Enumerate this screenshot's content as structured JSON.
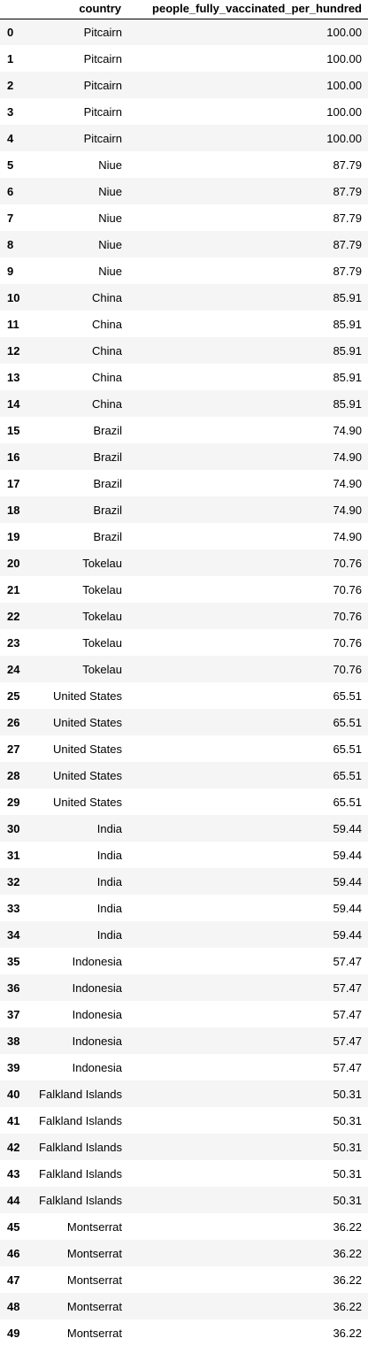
{
  "table": {
    "columns": [
      "country",
      "people_fully_vaccinated_per_hundred"
    ],
    "rows": [
      {
        "index": "0",
        "country": "Pitcairn",
        "value": "100.00"
      },
      {
        "index": "1",
        "country": "Pitcairn",
        "value": "100.00"
      },
      {
        "index": "2",
        "country": "Pitcairn",
        "value": "100.00"
      },
      {
        "index": "3",
        "country": "Pitcairn",
        "value": "100.00"
      },
      {
        "index": "4",
        "country": "Pitcairn",
        "value": "100.00"
      },
      {
        "index": "5",
        "country": "Niue",
        "value": "87.79"
      },
      {
        "index": "6",
        "country": "Niue",
        "value": "87.79"
      },
      {
        "index": "7",
        "country": "Niue",
        "value": "87.79"
      },
      {
        "index": "8",
        "country": "Niue",
        "value": "87.79"
      },
      {
        "index": "9",
        "country": "Niue",
        "value": "87.79"
      },
      {
        "index": "10",
        "country": "China",
        "value": "85.91"
      },
      {
        "index": "11",
        "country": "China",
        "value": "85.91"
      },
      {
        "index": "12",
        "country": "China",
        "value": "85.91"
      },
      {
        "index": "13",
        "country": "China",
        "value": "85.91"
      },
      {
        "index": "14",
        "country": "China",
        "value": "85.91"
      },
      {
        "index": "15",
        "country": "Brazil",
        "value": "74.90"
      },
      {
        "index": "16",
        "country": "Brazil",
        "value": "74.90"
      },
      {
        "index": "17",
        "country": "Brazil",
        "value": "74.90"
      },
      {
        "index": "18",
        "country": "Brazil",
        "value": "74.90"
      },
      {
        "index": "19",
        "country": "Brazil",
        "value": "74.90"
      },
      {
        "index": "20",
        "country": "Tokelau",
        "value": "70.76"
      },
      {
        "index": "21",
        "country": "Tokelau",
        "value": "70.76"
      },
      {
        "index": "22",
        "country": "Tokelau",
        "value": "70.76"
      },
      {
        "index": "23",
        "country": "Tokelau",
        "value": "70.76"
      },
      {
        "index": "24",
        "country": "Tokelau",
        "value": "70.76"
      },
      {
        "index": "25",
        "country": "United States",
        "value": "65.51"
      },
      {
        "index": "26",
        "country": "United States",
        "value": "65.51"
      },
      {
        "index": "27",
        "country": "United States",
        "value": "65.51"
      },
      {
        "index": "28",
        "country": "United States",
        "value": "65.51"
      },
      {
        "index": "29",
        "country": "United States",
        "value": "65.51"
      },
      {
        "index": "30",
        "country": "India",
        "value": "59.44"
      },
      {
        "index": "31",
        "country": "India",
        "value": "59.44"
      },
      {
        "index": "32",
        "country": "India",
        "value": "59.44"
      },
      {
        "index": "33",
        "country": "India",
        "value": "59.44"
      },
      {
        "index": "34",
        "country": "India",
        "value": "59.44"
      },
      {
        "index": "35",
        "country": "Indonesia",
        "value": "57.47"
      },
      {
        "index": "36",
        "country": "Indonesia",
        "value": "57.47"
      },
      {
        "index": "37",
        "country": "Indonesia",
        "value": "57.47"
      },
      {
        "index": "38",
        "country": "Indonesia",
        "value": "57.47"
      },
      {
        "index": "39",
        "country": "Indonesia",
        "value": "57.47"
      },
      {
        "index": "40",
        "country": "Falkland Islands",
        "value": "50.31"
      },
      {
        "index": "41",
        "country": "Falkland Islands",
        "value": "50.31"
      },
      {
        "index": "42",
        "country": "Falkland Islands",
        "value": "50.31"
      },
      {
        "index": "43",
        "country": "Falkland Islands",
        "value": "50.31"
      },
      {
        "index": "44",
        "country": "Falkland Islands",
        "value": "50.31"
      },
      {
        "index": "45",
        "country": "Montserrat",
        "value": "36.22"
      },
      {
        "index": "46",
        "country": "Montserrat",
        "value": "36.22"
      },
      {
        "index": "47",
        "country": "Montserrat",
        "value": "36.22"
      },
      {
        "index": "48",
        "country": "Montserrat",
        "value": "36.22"
      },
      {
        "index": "49",
        "country": "Montserrat",
        "value": "36.22"
      }
    ]
  },
  "colors": {
    "row_stripe": "#f5f5f5",
    "row_plain": "#ffffff",
    "text": "#000000",
    "header_rule": "#000000"
  }
}
